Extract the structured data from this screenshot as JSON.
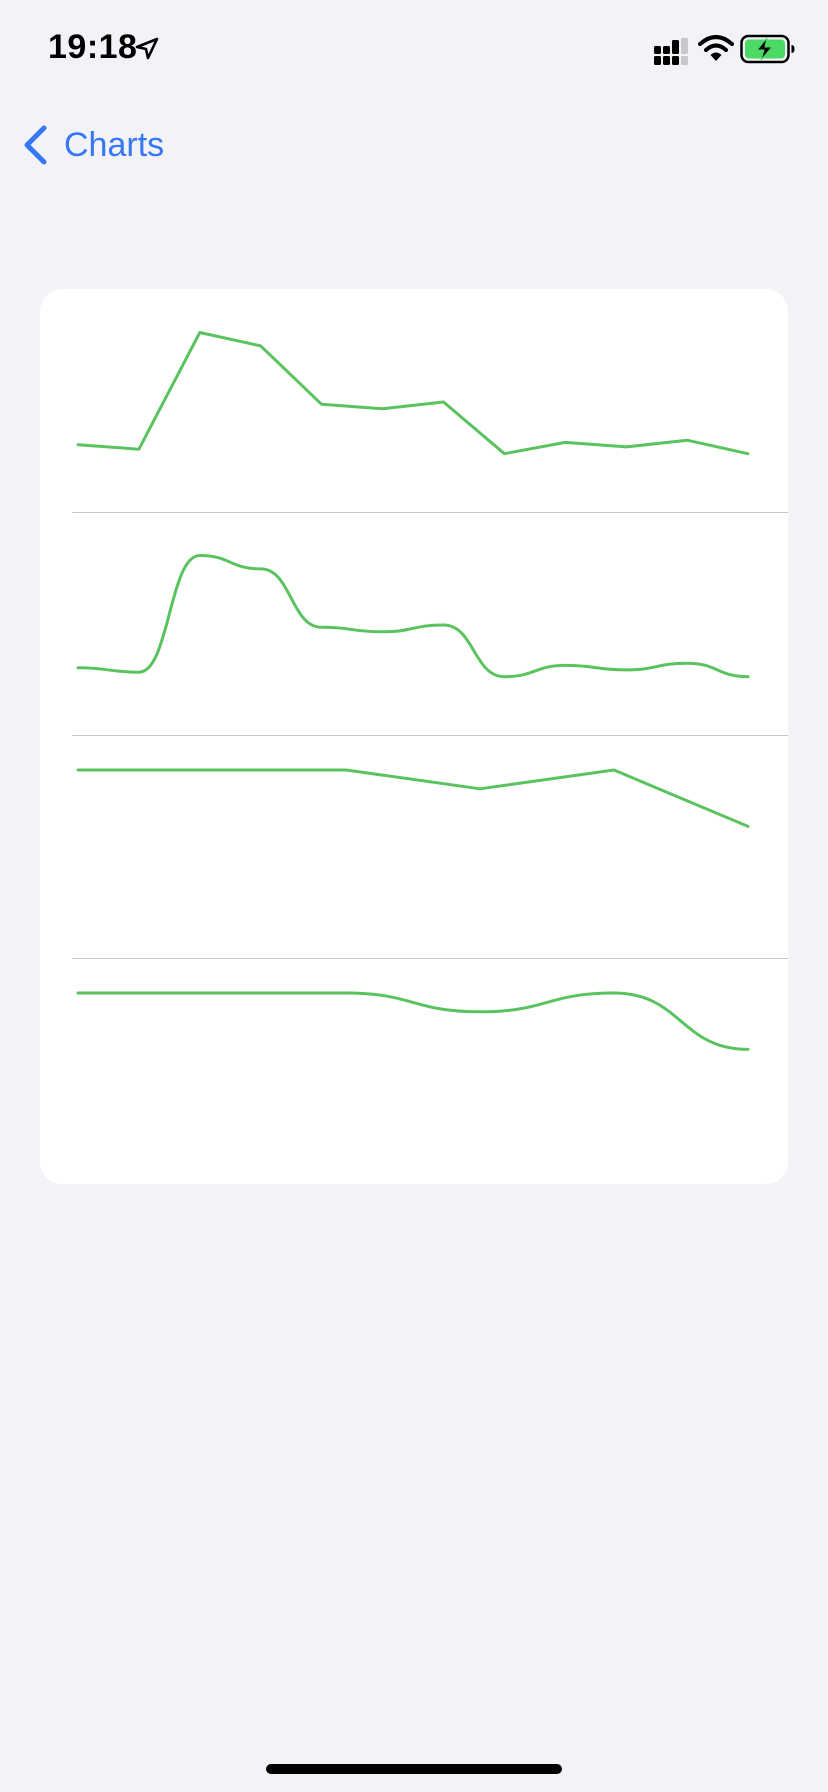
{
  "status_bar": {
    "time": "19:18",
    "icons": [
      "location-arrow-icon",
      "cellular-signal-icon",
      "wifi-icon",
      "battery-charging-icon"
    ],
    "battery_color": "#4cd964"
  },
  "nav": {
    "back_label": "Charts",
    "back_icon": "chevron-left-icon",
    "accent": "#3478f6"
  },
  "chart_data": [
    {
      "type": "line",
      "interpolation": "linear",
      "color": "#5ac35f",
      "x": [
        0,
        1,
        2,
        3,
        4,
        5,
        6,
        7,
        8,
        9,
        10,
        11
      ],
      "values": [
        3.0,
        2.8,
        8.0,
        7.4,
        4.8,
        4.6,
        4.9,
        2.6,
        3.1,
        2.9,
        3.2,
        2.6
      ],
      "ylim": [
        0,
        8.6
      ],
      "grid": false
    },
    {
      "type": "line",
      "interpolation": "smooth",
      "color": "#5ac35f",
      "x": [
        0,
        1,
        2,
        3,
        4,
        5,
        6,
        7,
        8,
        9,
        10,
        11
      ],
      "values": [
        3.0,
        2.8,
        8.0,
        7.4,
        4.8,
        4.6,
        4.9,
        2.6,
        3.1,
        2.9,
        3.2,
        2.6
      ],
      "ylim": [
        0,
        8.6
      ],
      "grid": false
    },
    {
      "type": "line",
      "interpolation": "linear",
      "color": "#5ac35f",
      "x": [
        0,
        1,
        2,
        3,
        4,
        5
      ],
      "values": [
        10.0,
        10.0,
        10.0,
        9.7,
        10.0,
        9.1
      ],
      "ylim": [
        7.0,
        10.08
      ],
      "grid": false
    },
    {
      "type": "line",
      "interpolation": "smooth",
      "color": "#5ac35f",
      "x": [
        0,
        1,
        2,
        3,
        4,
        5
      ],
      "values": [
        10.0,
        10.0,
        10.0,
        9.7,
        10.0,
        9.1
      ],
      "ylim": [
        7.0,
        10.08
      ],
      "grid": false
    }
  ]
}
